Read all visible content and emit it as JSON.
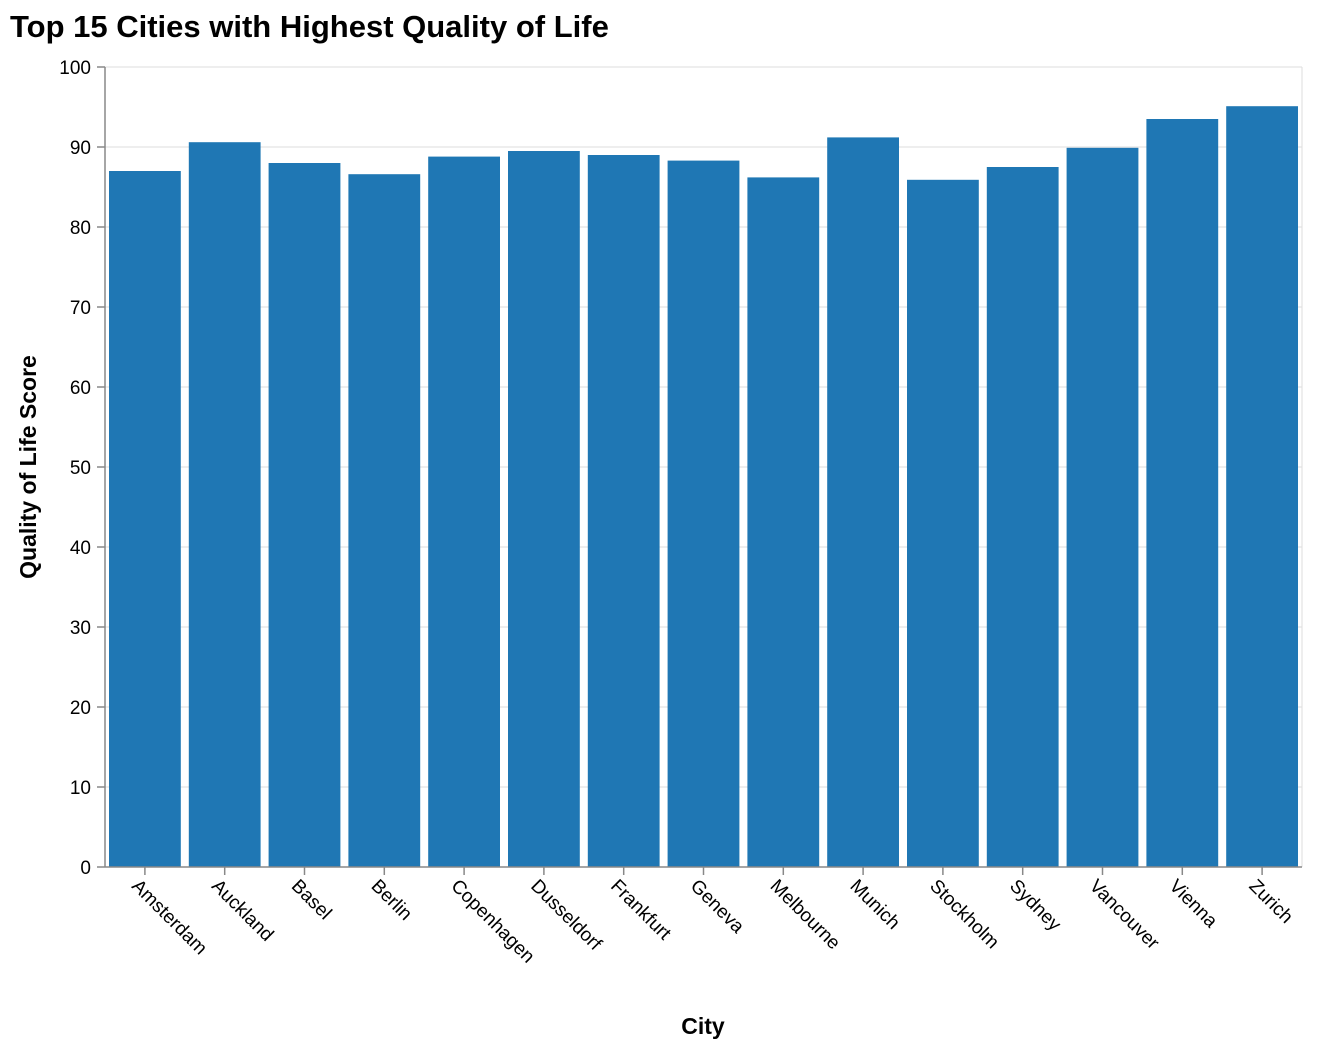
{
  "chart_data": {
    "type": "bar",
    "title": "Top 15 Cities with Highest Quality of Life",
    "xlabel": "City",
    "ylabel": "Quality of Life Score",
    "ylim": [
      0,
      100
    ],
    "yticks": [
      0,
      10,
      20,
      30,
      40,
      50,
      60,
      70,
      80,
      90,
      100
    ],
    "grid": true,
    "bar_color": "#1f77b4",
    "categories": [
      "Amsterdam",
      "Auckland",
      "Basel",
      "Berlin",
      "Copenhagen",
      "Dusseldorf",
      "Frankfurt",
      "Geneva",
      "Melbourne",
      "Munich",
      "Stockholm",
      "Sydney",
      "Vancouver",
      "Vienna",
      "Zurich"
    ],
    "values": [
      87.0,
      90.6,
      88.0,
      86.6,
      88.8,
      89.5,
      89.0,
      88.3,
      86.2,
      91.2,
      85.9,
      87.5,
      89.9,
      93.5,
      95.1
    ]
  }
}
